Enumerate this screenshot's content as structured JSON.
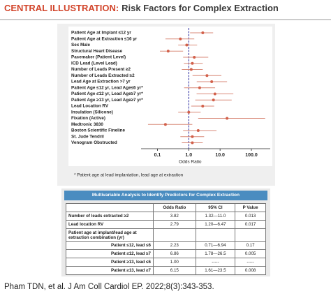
{
  "header": {
    "label": "CENTRAL ILLUSTRATION:",
    "title": "Risk Factors for Complex Extraction"
  },
  "chart_data": {
    "type": "forest",
    "categories": [
      "Patient Age at Implant ≤12 yr",
      "Patient Age at Extraction ≤16 yr",
      "Sex Male",
      "Structural Heart Disease",
      "Pacemaker (Patient Level)",
      "ICD Lead (Level Lead)",
      "Number of Leads Present ≥2",
      "Number of Leads Extracted ≥2",
      "Lead Age at Extraction >7 yr",
      "Patient Age ≤12 yr, Lead Age≤6 yr*",
      "Patient Age ≤12 yr, Lead Age≥7 yr*",
      "Patient Age ≥13 yr, Lead Age≥7 yr*",
      "Lead Location RV",
      "Insulation (Silicone)",
      "Fixation (Active)",
      "Medtronic 3830",
      "Boston Scientific Fineline",
      "St. Jude Tendril",
      "Venogram Obstructed"
    ],
    "values": [
      2.8,
      0.54,
      0.86,
      0.22,
      1.5,
      1.3,
      1.2,
      3.82,
      5.4,
      2.23,
      6.86,
      6.15,
      2.79,
      1.0,
      16.7,
      0.18,
      2.0,
      1.3,
      1.3
    ],
    "ci_low": [
      1.1,
      0.18,
      0.46,
      0.12,
      0.66,
      0.7,
      0.6,
      1.32,
      1.8,
      0.71,
      1.78,
      1.61,
      1.2,
      0.46,
      2.0,
      0.05,
      0.66,
      0.54,
      0.6
    ],
    "ci_high": [
      6.0,
      1.5,
      1.85,
      0.66,
      4.2,
      2.8,
      2.8,
      11.0,
      16.7,
      6.94,
      26.5,
      23.5,
      6.47,
      2.4,
      275,
      1.3,
      7.7,
      3.1,
      2.8
    ],
    "color": "#d2604a",
    "ci_color": "#d98a78",
    "xlabel": "Odds Ratio",
    "xlim": [
      0.03,
      400
    ],
    "xticks": [
      0.1,
      {
        "value": 1,
        "label": "1.0"
      },
      {
        "value": 10,
        "label": "10.0"
      },
      {
        "value": 100,
        "label": "100.0"
      }
    ],
    "log_x": true,
    "reference_line": 1,
    "reference_color": "#2b2b9e",
    "footnote": "* Patient age at lead implantation, lead age at extraction"
  },
  "table": {
    "title": "Multivariable Analysis to Identify Predictors for Complex Extraction",
    "columns": [
      "Odds Ratio",
      "95% CI",
      "P Value"
    ],
    "rows": [
      [
        "Number of leads extracted ≥2",
        "3.82",
        "1.32—11.0",
        "0.013"
      ],
      [
        "Lead location RV",
        "2.79",
        "1.20—6.47",
        "0.017"
      ]
    ],
    "group_label": "Patient age at implant/lead age at extraction combination (yr)",
    "subrows": [
      [
        "Patient ≤12, lead ≤6",
        "2.23",
        "0.71—6.94",
        "0.17"
      ],
      [
        "Patient ≤12, lead ≥7",
        "6.86",
        "1.78—26.5",
        "0.005"
      ],
      [
        "Patient ≥13, lead ≤6",
        "1.00",
        "-----",
        "-----"
      ],
      [
        "Patient ≥13, lead ≥7",
        "6.15",
        "1.61—23.5",
        "0.008"
      ]
    ]
  },
  "citation": "Pham TDN, et al. J Am Coll Cardiol EP. 2022;8(3):343-353."
}
